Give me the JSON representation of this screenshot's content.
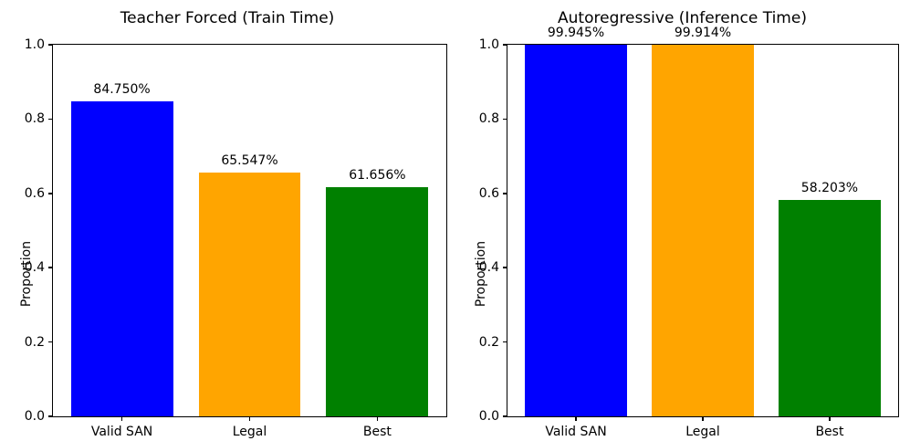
{
  "chart_data": [
    {
      "type": "bar",
      "title": "Teacher Forced (Train Time)",
      "ylabel": "Proportion",
      "categories": [
        "Valid SAN",
        "Legal",
        "Best"
      ],
      "values": [
        0.8475,
        0.65547,
        0.61656
      ],
      "bar_labels": [
        "84.750%",
        "65.547%",
        "61.656%"
      ],
      "bar_colors": [
        "#0000ff",
        "#ffa500",
        "#008000"
      ],
      "ylim": [
        0.0,
        1.0
      ],
      "yticks": [
        "0.0",
        "0.2",
        "0.4",
        "0.6",
        "0.8",
        "1.0"
      ],
      "grid": false,
      "legend": null
    },
    {
      "type": "bar",
      "title": "Autoregressive (Inference Time)",
      "ylabel": "Proportion",
      "categories": [
        "Valid SAN",
        "Legal",
        "Best"
      ],
      "values": [
        0.99945,
        0.99914,
        0.58203
      ],
      "bar_labels": [
        "99.945%",
        "99.914%",
        "58.203%"
      ],
      "bar_colors": [
        "#0000ff",
        "#ffa500",
        "#008000"
      ],
      "ylim": [
        0.0,
        1.0
      ],
      "yticks": [
        "0.0",
        "0.2",
        "0.4",
        "0.6",
        "0.8",
        "1.0"
      ],
      "grid": false,
      "legend": null
    }
  ]
}
